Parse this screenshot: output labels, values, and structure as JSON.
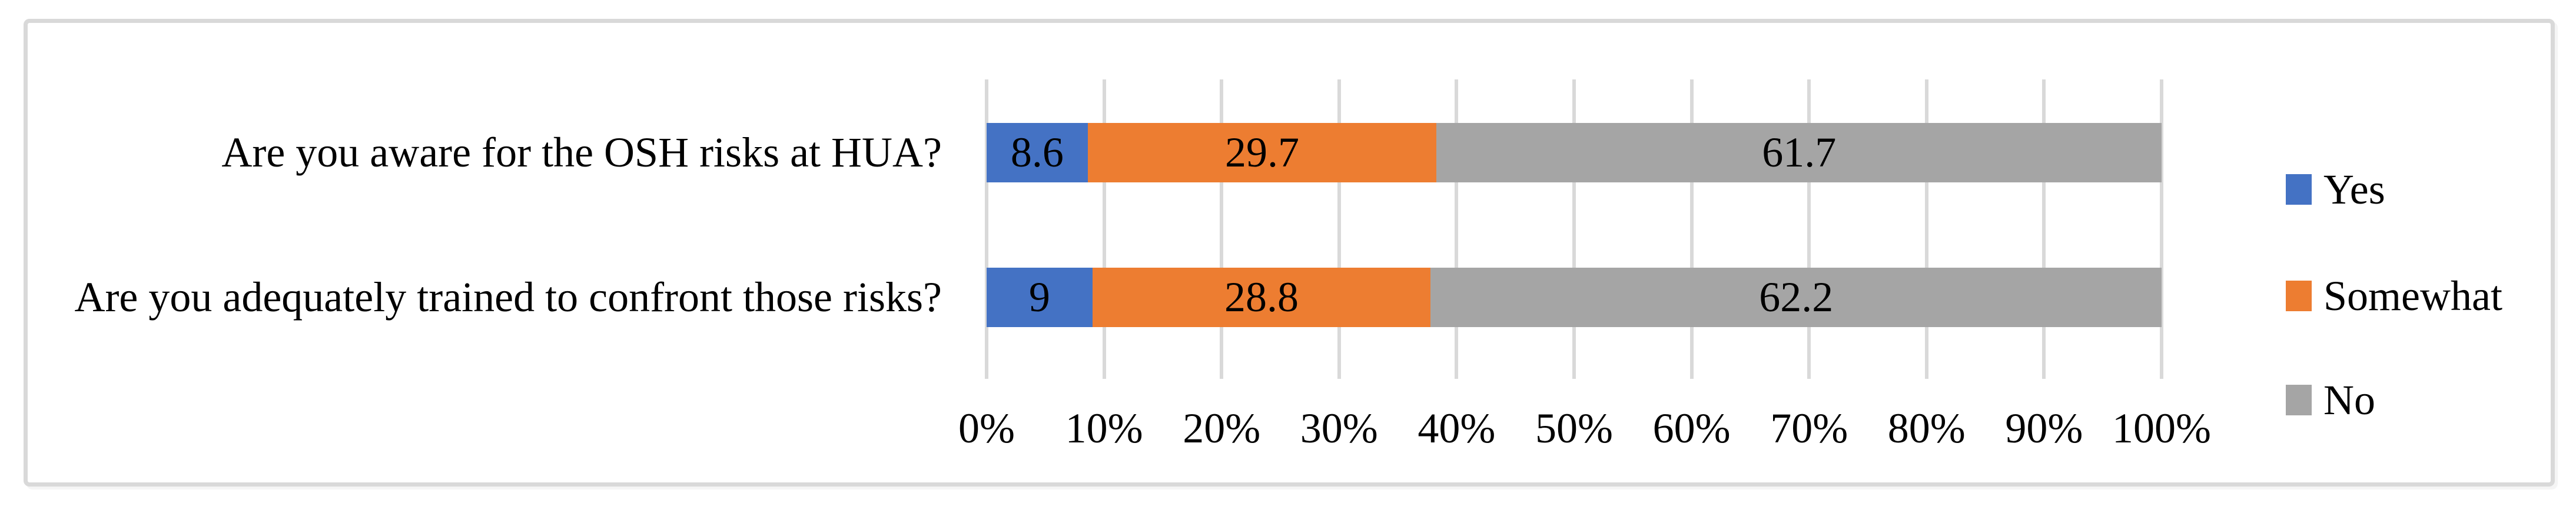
{
  "chart_data": {
    "type": "bar",
    "orientation": "horizontal",
    "stacked": true,
    "title": "",
    "xlabel": "",
    "ylabel": "",
    "categories": [
      "Are you aware for the OSH risks at HUA?",
      "Are you adequately trained to confront those risks?"
    ],
    "series": [
      {
        "name": "Yes",
        "color": "#4472C4",
        "values": [
          8.6,
          9
        ]
      },
      {
        "name": "Somewhat",
        "color": "#ED7D31",
        "values": [
          29.7,
          28.8
        ]
      },
      {
        "name": "No",
        "color": "#A5A5A5",
        "values": [
          61.7,
          62.2
        ]
      }
    ],
    "value_labels": [
      [
        "8.6",
        "29.7",
        "61.7"
      ],
      [
        "9",
        "28.8",
        "62.2"
      ]
    ],
    "x_ticks": [
      "0%",
      "10%",
      "20%",
      "30%",
      "40%",
      "50%",
      "60%",
      "70%",
      "80%",
      "90%",
      "100%"
    ],
    "xlim": [
      0,
      100
    ],
    "grid": true,
    "legend_position": "right",
    "colors": {
      "gridline": "#D9D9D9",
      "frame_border": "#D9D9D9",
      "text": "#000000",
      "background": "#FFFFFF"
    }
  }
}
